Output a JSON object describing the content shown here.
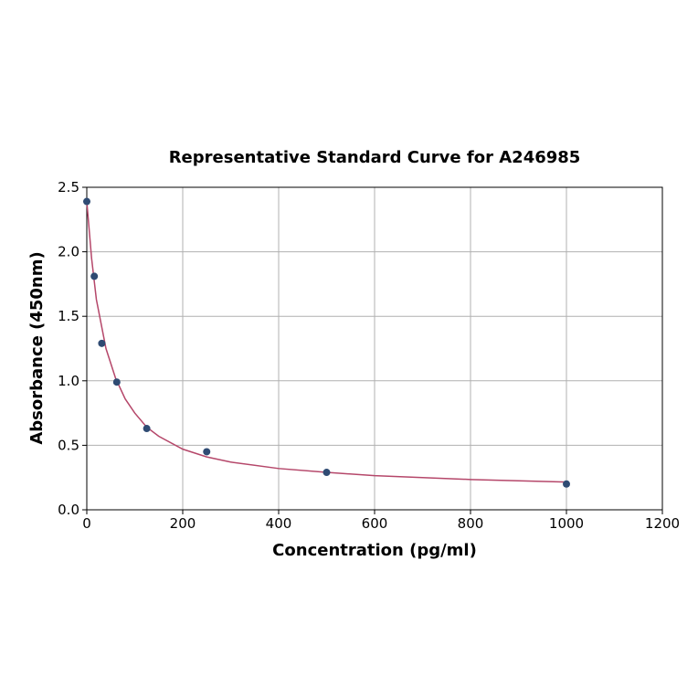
{
  "chart_data": {
    "type": "scatter",
    "title": "Representative Standard Curve for A246985",
    "xlabel": "Concentration (pg/ml)",
    "ylabel": "Absorbance (450nm)",
    "xlim": [
      0,
      1200
    ],
    "xticks": [
      0,
      200,
      400,
      600,
      800,
      1000,
      1200
    ],
    "ylim": [
      0,
      2.5
    ],
    "yticks": [
      {
        "value": 0,
        "label": "0.0"
      },
      {
        "value": 0.5,
        "label": "0.5"
      },
      {
        "value": 1,
        "label": "1.0"
      },
      {
        "value": 1.5,
        "label": "1.5"
      },
      {
        "value": 2,
        "label": "2.0"
      },
      {
        "value": 2.5,
        "label": "2.5"
      }
    ],
    "grid": true,
    "series": [
      {
        "style": "line",
        "color": "#b5476a",
        "x": [
          0,
          10,
          20,
          40,
          60,
          80,
          100,
          125,
          150,
          200,
          250,
          300,
          400,
          500,
          600,
          700,
          800,
          900,
          1000
        ],
        "values": [
          2.39,
          1.95,
          1.63,
          1.25,
          1.02,
          0.86,
          0.75,
          0.64,
          0.57,
          0.47,
          0.41,
          0.37,
          0.32,
          0.29,
          0.265,
          0.25,
          0.235,
          0.225,
          0.215
        ]
      },
      {
        "style": "markers",
        "color": "#2f4b73",
        "x": [
          0,
          15.6,
          31.25,
          62.5,
          125,
          250,
          500,
          1000
        ],
        "values": [
          2.39,
          1.81,
          1.29,
          0.99,
          0.63,
          0.45,
          0.29,
          0.2
        ]
      }
    ]
  }
}
